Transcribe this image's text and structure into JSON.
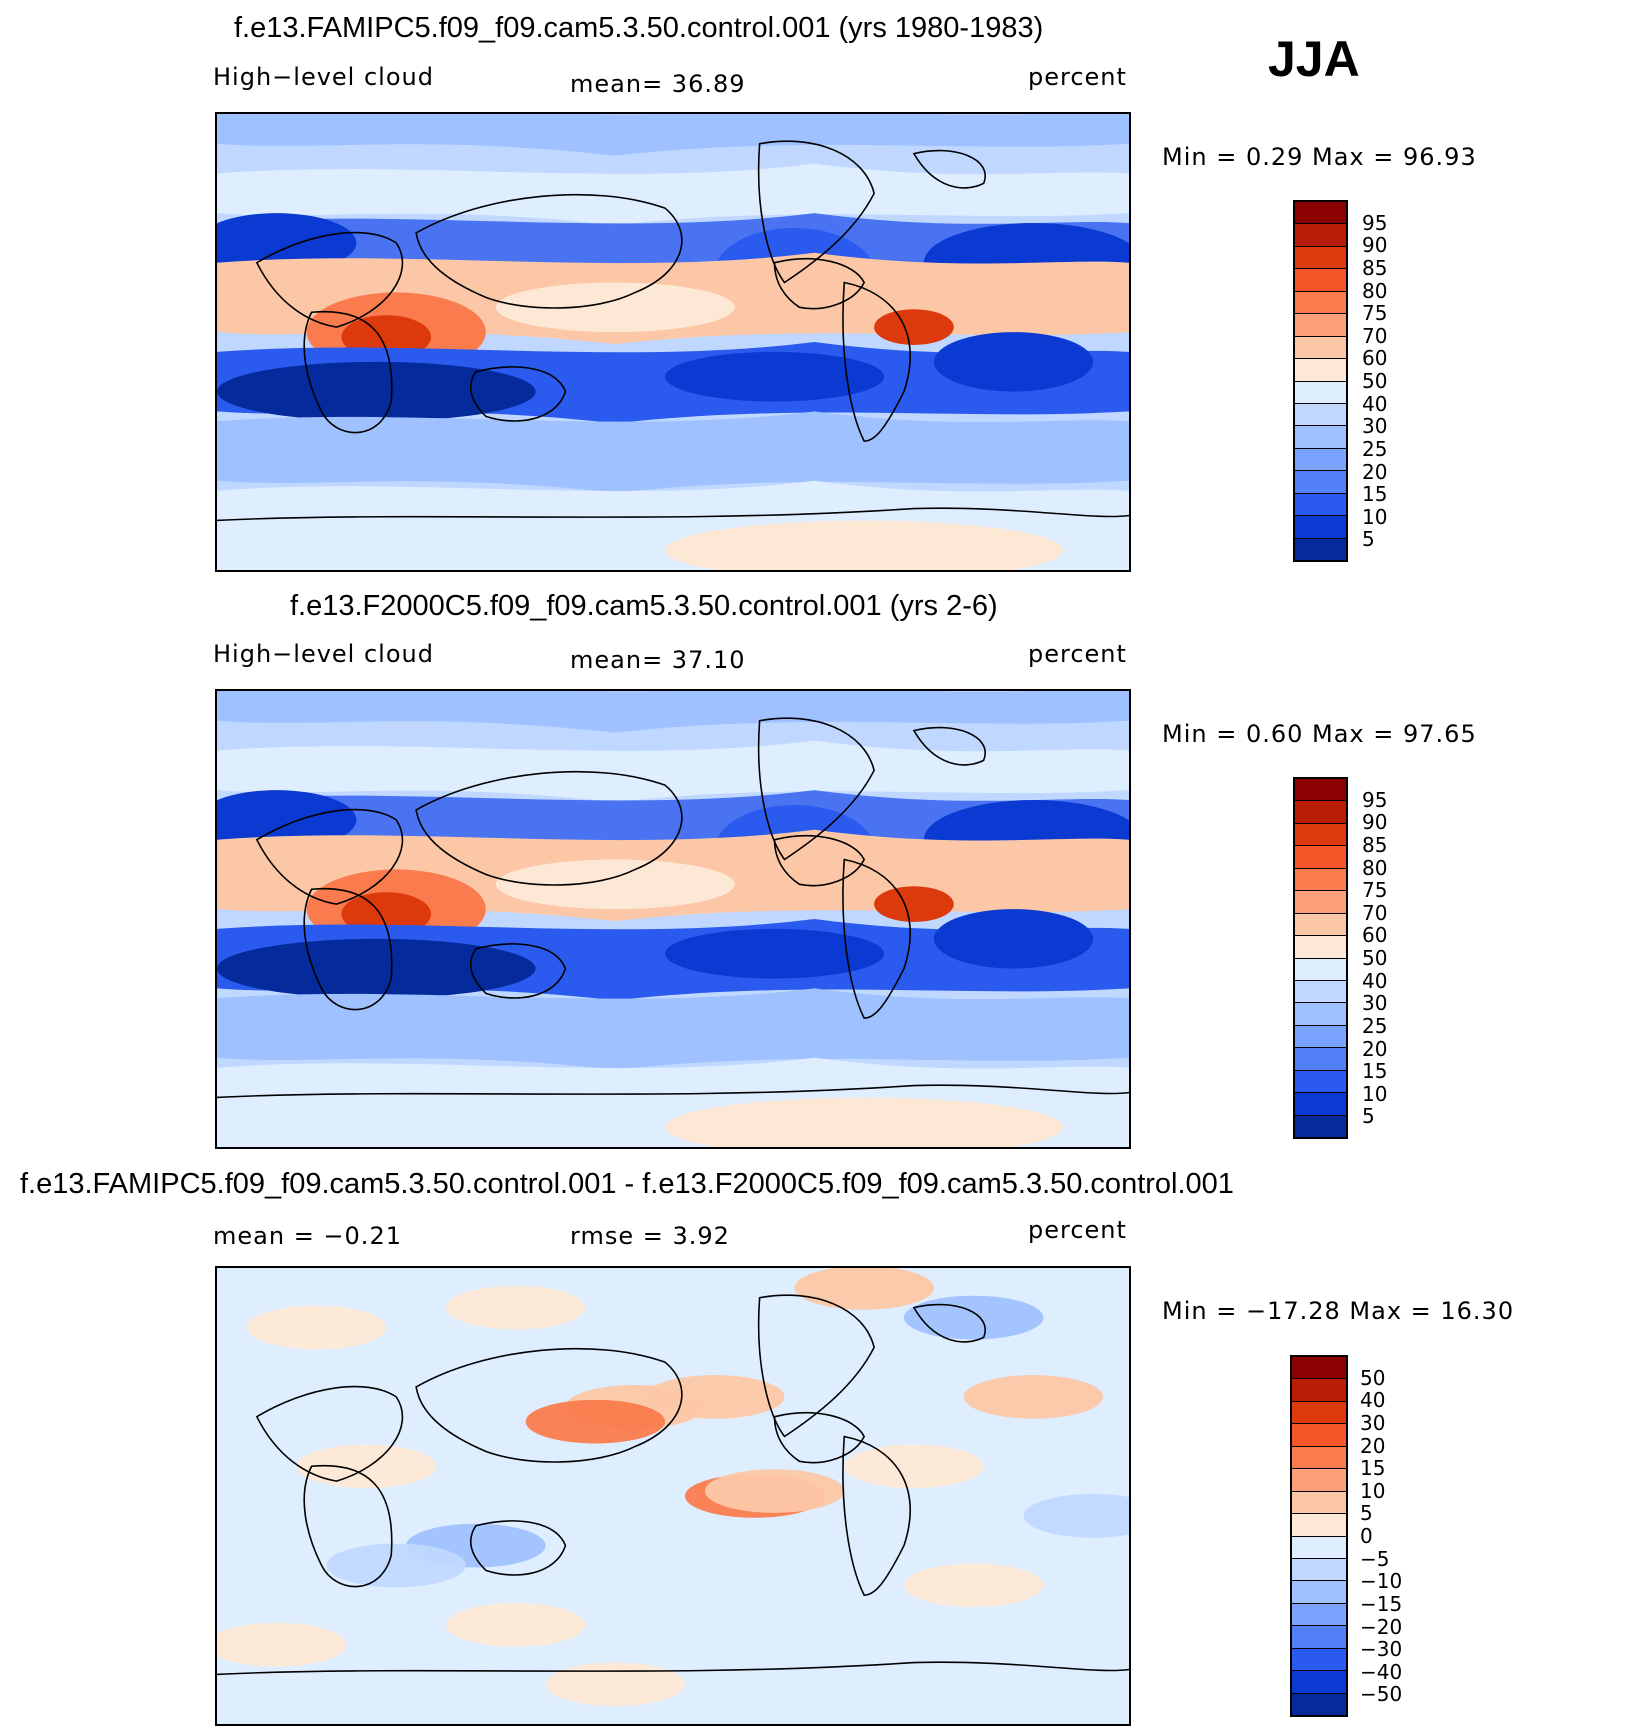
{
  "season": "JJA",
  "panels": [
    {
      "title": "f.e13.FAMIPC5.f09_f09.cam5.3.50.control.001 (yrs 1980-1983)",
      "left_label": "High−level  cloud",
      "center_label": "mean=   36.89",
      "units": "percent",
      "minmax": "Min  =     0.29  Max  =    96.93",
      "colorbar": {
        "labels": [
          "95",
          "90",
          "85",
          "80",
          "75",
          "70",
          "60",
          "50",
          "40",
          "30",
          "25",
          "20",
          "15",
          "10",
          "5"
        ],
        "colors": [
          "#8b0000",
          "#b81d06",
          "#dc3a0c",
          "#f4562a",
          "#fa7b4d",
          "#fca07a",
          "#fcc7a6",
          "#fde8d6",
          "#dfeeff",
          "#c0d8ff",
          "#9fc1ff",
          "#7aa3ff",
          "#5280f7",
          "#2a5aee",
          "#0a3ad2",
          "#042a9c"
        ]
      },
      "map_style": "full"
    },
    {
      "title": "f.e13.F2000C5.f09_f09.cam5.3.50.control.001 (yrs 2-6)",
      "left_label": "High−level  cloud",
      "center_label": "mean=   37.10",
      "units": "percent",
      "minmax": "Min  =     0.60  Max  =    97.65",
      "colorbar": {
        "labels": [
          "95",
          "90",
          "85",
          "80",
          "75",
          "70",
          "60",
          "50",
          "40",
          "30",
          "25",
          "20",
          "15",
          "10",
          "5"
        ],
        "colors": [
          "#8b0000",
          "#b81d06",
          "#dc3a0c",
          "#f4562a",
          "#fa7b4d",
          "#fca07a",
          "#fcc7a6",
          "#fde8d6",
          "#dfeeff",
          "#c0d8ff",
          "#9fc1ff",
          "#7aa3ff",
          "#5280f7",
          "#2a5aee",
          "#0a3ad2",
          "#042a9c"
        ]
      },
      "map_style": "full"
    },
    {
      "title": "f.e13.FAMIPC5.f09_f09.cam5.3.50.control.001 - f.e13.F2000C5.f09_f09.cam5.3.50.control.001",
      "left_label": "mean  =    −0.21",
      "center_label": "rmse  =     3.92",
      "units": "percent",
      "minmax": "Min  =  −17.28  Max  =    16.30",
      "colorbar": {
        "labels": [
          "50",
          "40",
          "30",
          "20",
          "15",
          "10",
          "5",
          "0",
          "−5",
          "−10",
          "−15",
          "−20",
          "−30",
          "−40",
          "−50"
        ],
        "colors": [
          "#8b0000",
          "#b81d06",
          "#dc3a0c",
          "#f4562a",
          "#fa7b4d",
          "#fca07a",
          "#fcc7a6",
          "#fde8d6",
          "#dfeeff",
          "#c0d8ff",
          "#9fc1ff",
          "#7aa3ff",
          "#5280f7",
          "#2a5aee",
          "#0a3ad2",
          "#042a9c"
        ]
      },
      "map_style": "diff"
    }
  ]
}
